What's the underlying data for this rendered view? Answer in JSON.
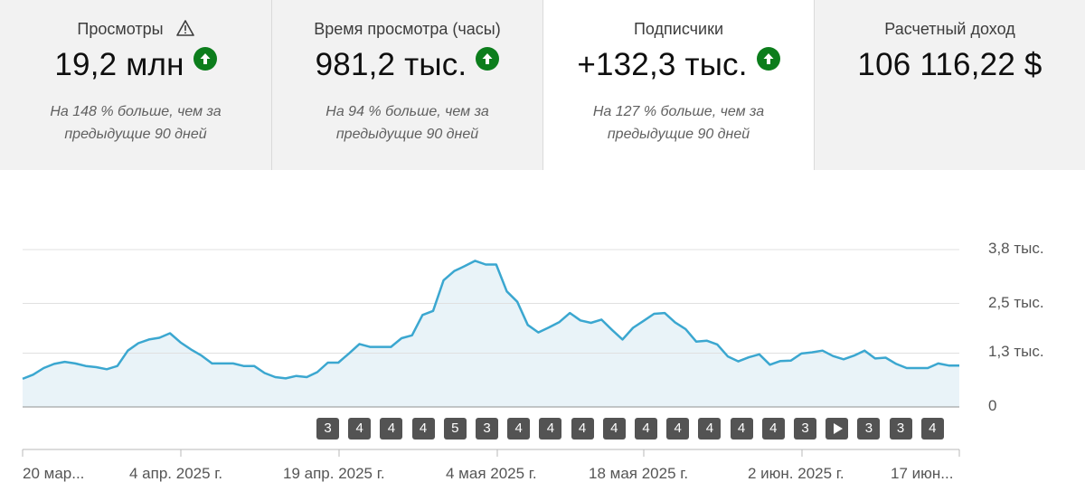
{
  "cards": [
    {
      "label": "Просмотры",
      "value": "19,2 млн",
      "note": "На 148 % больше, чем за предыдущие 90 дней",
      "warning": true,
      "trend": "up",
      "selected": false
    },
    {
      "label": "Время просмотра (часы)",
      "value": "981,2 тыс.",
      "note": "На 94 % больше, чем за предыдущие 90 дней",
      "warning": false,
      "trend": "up",
      "selected": false
    },
    {
      "label": "Подписчики",
      "value": "+132,3 тыс.",
      "note": "На 127 % больше, чем за предыдущие 90 дней",
      "warning": false,
      "trend": "up",
      "selected": true
    },
    {
      "label": "Расчетный доход",
      "value": "106 116,22 $",
      "note": "",
      "warning": false,
      "trend": "",
      "selected": false
    }
  ],
  "colors": {
    "line": "#3ba7d0",
    "fill": "#e9f3f8",
    "up_badge": "#0c7d1c",
    "video_badge": "#535353"
  },
  "chart_data": {
    "type": "area",
    "y_ticks": [
      "3,8 тыс.",
      "2,5 тыс.",
      "1,3 тыс.",
      "0"
    ],
    "y_tick_values": [
      3800,
      2500,
      1300,
      0
    ],
    "ylim": [
      0,
      3800
    ],
    "x_ticks": [
      "20 мар...",
      "4 апр. 2025 г.",
      "19 апр. 2025 г.",
      "4 мая 2025 г.",
      "18 мая 2025 г.",
      "2 июн. 2025 г.",
      "17 июн..."
    ],
    "values": [
      680,
      780,
      940,
      1040,
      1090,
      1050,
      990,
      960,
      910,
      990,
      1360,
      1540,
      1630,
      1670,
      1780,
      1560,
      1390,
      1240,
      1050,
      1050,
      1050,
      990,
      990,
      820,
      720,
      690,
      750,
      720,
      840,
      1070,
      1070,
      1290,
      1520,
      1450,
      1450,
      1450,
      1660,
      1730,
      2220,
      2320,
      3060,
      3280,
      3400,
      3530,
      3440,
      3440,
      2790,
      2540,
      1980,
      1800,
      1920,
      2050,
      2270,
      2090,
      2030,
      2110,
      1860,
      1630,
      1910,
      2080,
      2250,
      2270,
      2040,
      1880,
      1580,
      1600,
      1510,
      1220,
      1100,
      1200,
      1270,
      1020,
      1110,
      1120,
      1290,
      1320,
      1360,
      1230,
      1150,
      1240,
      1360,
      1170,
      1190,
      1040,
      940,
      940,
      940,
      1050,
      1000,
      1000
    ],
    "video_markers": [
      {
        "label": "3",
        "kind": "count"
      },
      {
        "label": "4",
        "kind": "count"
      },
      {
        "label": "4",
        "kind": "count"
      },
      {
        "label": "4",
        "kind": "count"
      },
      {
        "label": "5",
        "kind": "count"
      },
      {
        "label": "3",
        "kind": "count"
      },
      {
        "label": "4",
        "kind": "count"
      },
      {
        "label": "4",
        "kind": "count"
      },
      {
        "label": "4",
        "kind": "count"
      },
      {
        "label": "4",
        "kind": "count"
      },
      {
        "label": "4",
        "kind": "count"
      },
      {
        "label": "4",
        "kind": "count"
      },
      {
        "label": "4",
        "kind": "count"
      },
      {
        "label": "4",
        "kind": "count"
      },
      {
        "label": "4",
        "kind": "count"
      },
      {
        "label": "3",
        "kind": "count"
      },
      {
        "label": "",
        "kind": "play"
      },
      {
        "label": "3",
        "kind": "count"
      },
      {
        "label": "3",
        "kind": "count"
      },
      {
        "label": "4",
        "kind": "count"
      }
    ]
  }
}
